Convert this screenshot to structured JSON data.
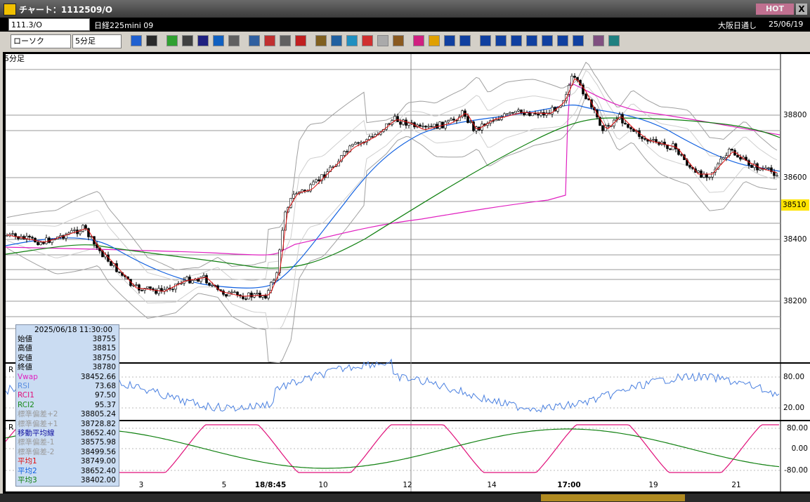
{
  "window": {
    "title": "チャート：1112509/O",
    "hot": "HOT",
    "close": "X"
  },
  "toolbar": {
    "symbol": "111.3/O",
    "name": "日経225mini 09",
    "market": "大阪日通し",
    "date": "25/06/19",
    "chart_type": "ローソク",
    "interval": "5分足"
  },
  "chart": {
    "panel_label": "5分足",
    "price_axis": [
      "38800",
      "38600",
      "38400",
      "38200"
    ],
    "current_price": "38510",
    "rsi_label": "R",
    "rsi_axis": [
      "80.00",
      "20.00"
    ],
    "rci_label": "R",
    "rci_axis": [
      "80.00",
      "0.00",
      "-80.00"
    ],
    "time_axis": [
      "3",
      "5",
      "18/8:45",
      "10",
      "12",
      "14",
      "17:00",
      "19",
      "21"
    ]
  },
  "info_panel": {
    "timestamp": "2025/06/18 11:30:00",
    "rows": [
      {
        "label": "始値",
        "value": "38755",
        "color": "#000000"
      },
      {
        "label": "高値",
        "value": "38815",
        "color": "#000000"
      },
      {
        "label": "安値",
        "value": "38750",
        "color": "#000000"
      },
      {
        "label": "終値",
        "value": "38780",
        "color": "#000000"
      },
      {
        "label": "Vwap",
        "value": "38452.66",
        "color": "#e020c0"
      },
      {
        "label": "RSI",
        "value": "73.68",
        "color": "#5a8ee0"
      },
      {
        "label": "RCI1",
        "value": "97.50",
        "color": "#e0107a"
      },
      {
        "label": "RCI2",
        "value": "95.37",
        "color": "#1a8a1a"
      },
      {
        "label": "標準偏差+2",
        "value": "38805.24",
        "color": "#9a9a9a"
      },
      {
        "label": "標準偏差+1",
        "value": "38728.82",
        "color": "#9a9a9a"
      },
      {
        "label": "移動平均線",
        "value": "38652.40",
        "color": "#1010a0"
      },
      {
        "label": "標準偏差-1",
        "value": "38575.98",
        "color": "#9a9a9a"
      },
      {
        "label": "標準偏差-2",
        "value": "38499.56",
        "color": "#9a9a9a"
      },
      {
        "label": "平均1",
        "value": "38749.00",
        "color": "#e01010"
      },
      {
        "label": "平均2",
        "value": "38652.40",
        "color": "#1060e0"
      },
      {
        "label": "平均3",
        "value": "38402.00",
        "color": "#108010"
      }
    ]
  }
}
